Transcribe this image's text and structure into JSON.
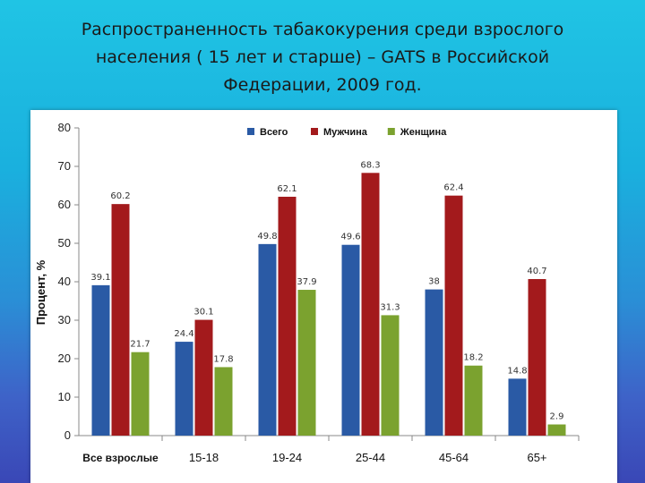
{
  "slide": {
    "title_line1": "Распространенность табакокурения среди взрослого",
    "title_line2": "населения ( 15 лет и старше)   – GATS в Российской",
    "title_line3": "Федерации, 2009 год."
  },
  "chart_data": {
    "type": "bar",
    "title": "",
    "xlabel": "",
    "ylabel": "Процент, %",
    "ylim": [
      0,
      80
    ],
    "yticks": [
      0,
      10,
      20,
      30,
      40,
      50,
      60,
      70,
      80
    ],
    "grid": false,
    "legend_position": "top-right",
    "categories": [
      "Все взрослые",
      "15-18",
      "19-24",
      "25-44",
      "45-64",
      "65+"
    ],
    "series": [
      {
        "name": "Всего",
        "color": "#2a5aa5",
        "values": [
          39.1,
          24.4,
          49.8,
          49.6,
          38,
          14.8
        ],
        "labels": [
          "39.1",
          "24.4",
          "49.8",
          "49.6",
          "38",
          "14.8"
        ]
      },
      {
        "name": "Мужчина",
        "color": "#a31a1c",
        "values": [
          60.2,
          30.1,
          62.1,
          68.3,
          62.4,
          40.7
        ],
        "labels": [
          "60.2",
          "30.1",
          "62.1",
          "68.3",
          "62.4",
          "40.7"
        ]
      },
      {
        "name": "Женщина",
        "color": "#7ba22f",
        "values": [
          21.7,
          17.8,
          37.9,
          31.3,
          18.2,
          2.9
        ],
        "labels": [
          "21.7",
          "17.8",
          "37.9",
          "31.3",
          "18.2",
          "2.9"
        ]
      }
    ]
  }
}
